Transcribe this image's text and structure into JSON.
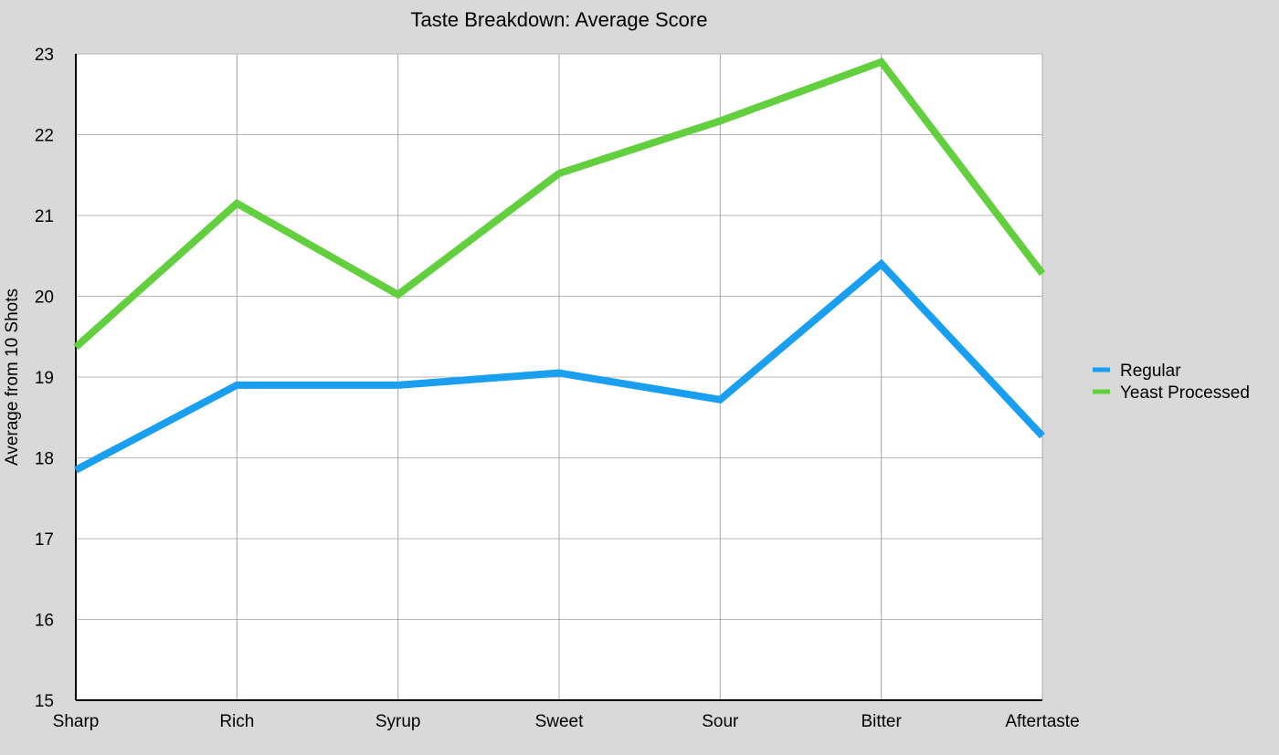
{
  "chart_data": {
    "type": "line",
    "title": "Taste Breakdown: Average Score",
    "xlabel": "",
    "ylabel": "Average from 10 Shots",
    "categories": [
      "Sharp",
      "Rich",
      "Syrup",
      "Sweet",
      "Sour",
      "Bitter",
      "Aftertaste"
    ],
    "ylim": [
      15,
      23
    ],
    "yticks": [
      15,
      16,
      17,
      18,
      19,
      20,
      21,
      22,
      23
    ],
    "grid": true,
    "legend_position": "right",
    "series": [
      {
        "name": "Regular",
        "color": "#1a9ff0",
        "values": [
          17.85,
          18.9,
          18.9,
          19.05,
          18.72,
          20.4,
          18.27
        ]
      },
      {
        "name": "Yeast Processed",
        "color": "#62d03e",
        "values": [
          19.37,
          21.15,
          20.02,
          21.52,
          22.17,
          22.9,
          20.28
        ]
      }
    ]
  }
}
